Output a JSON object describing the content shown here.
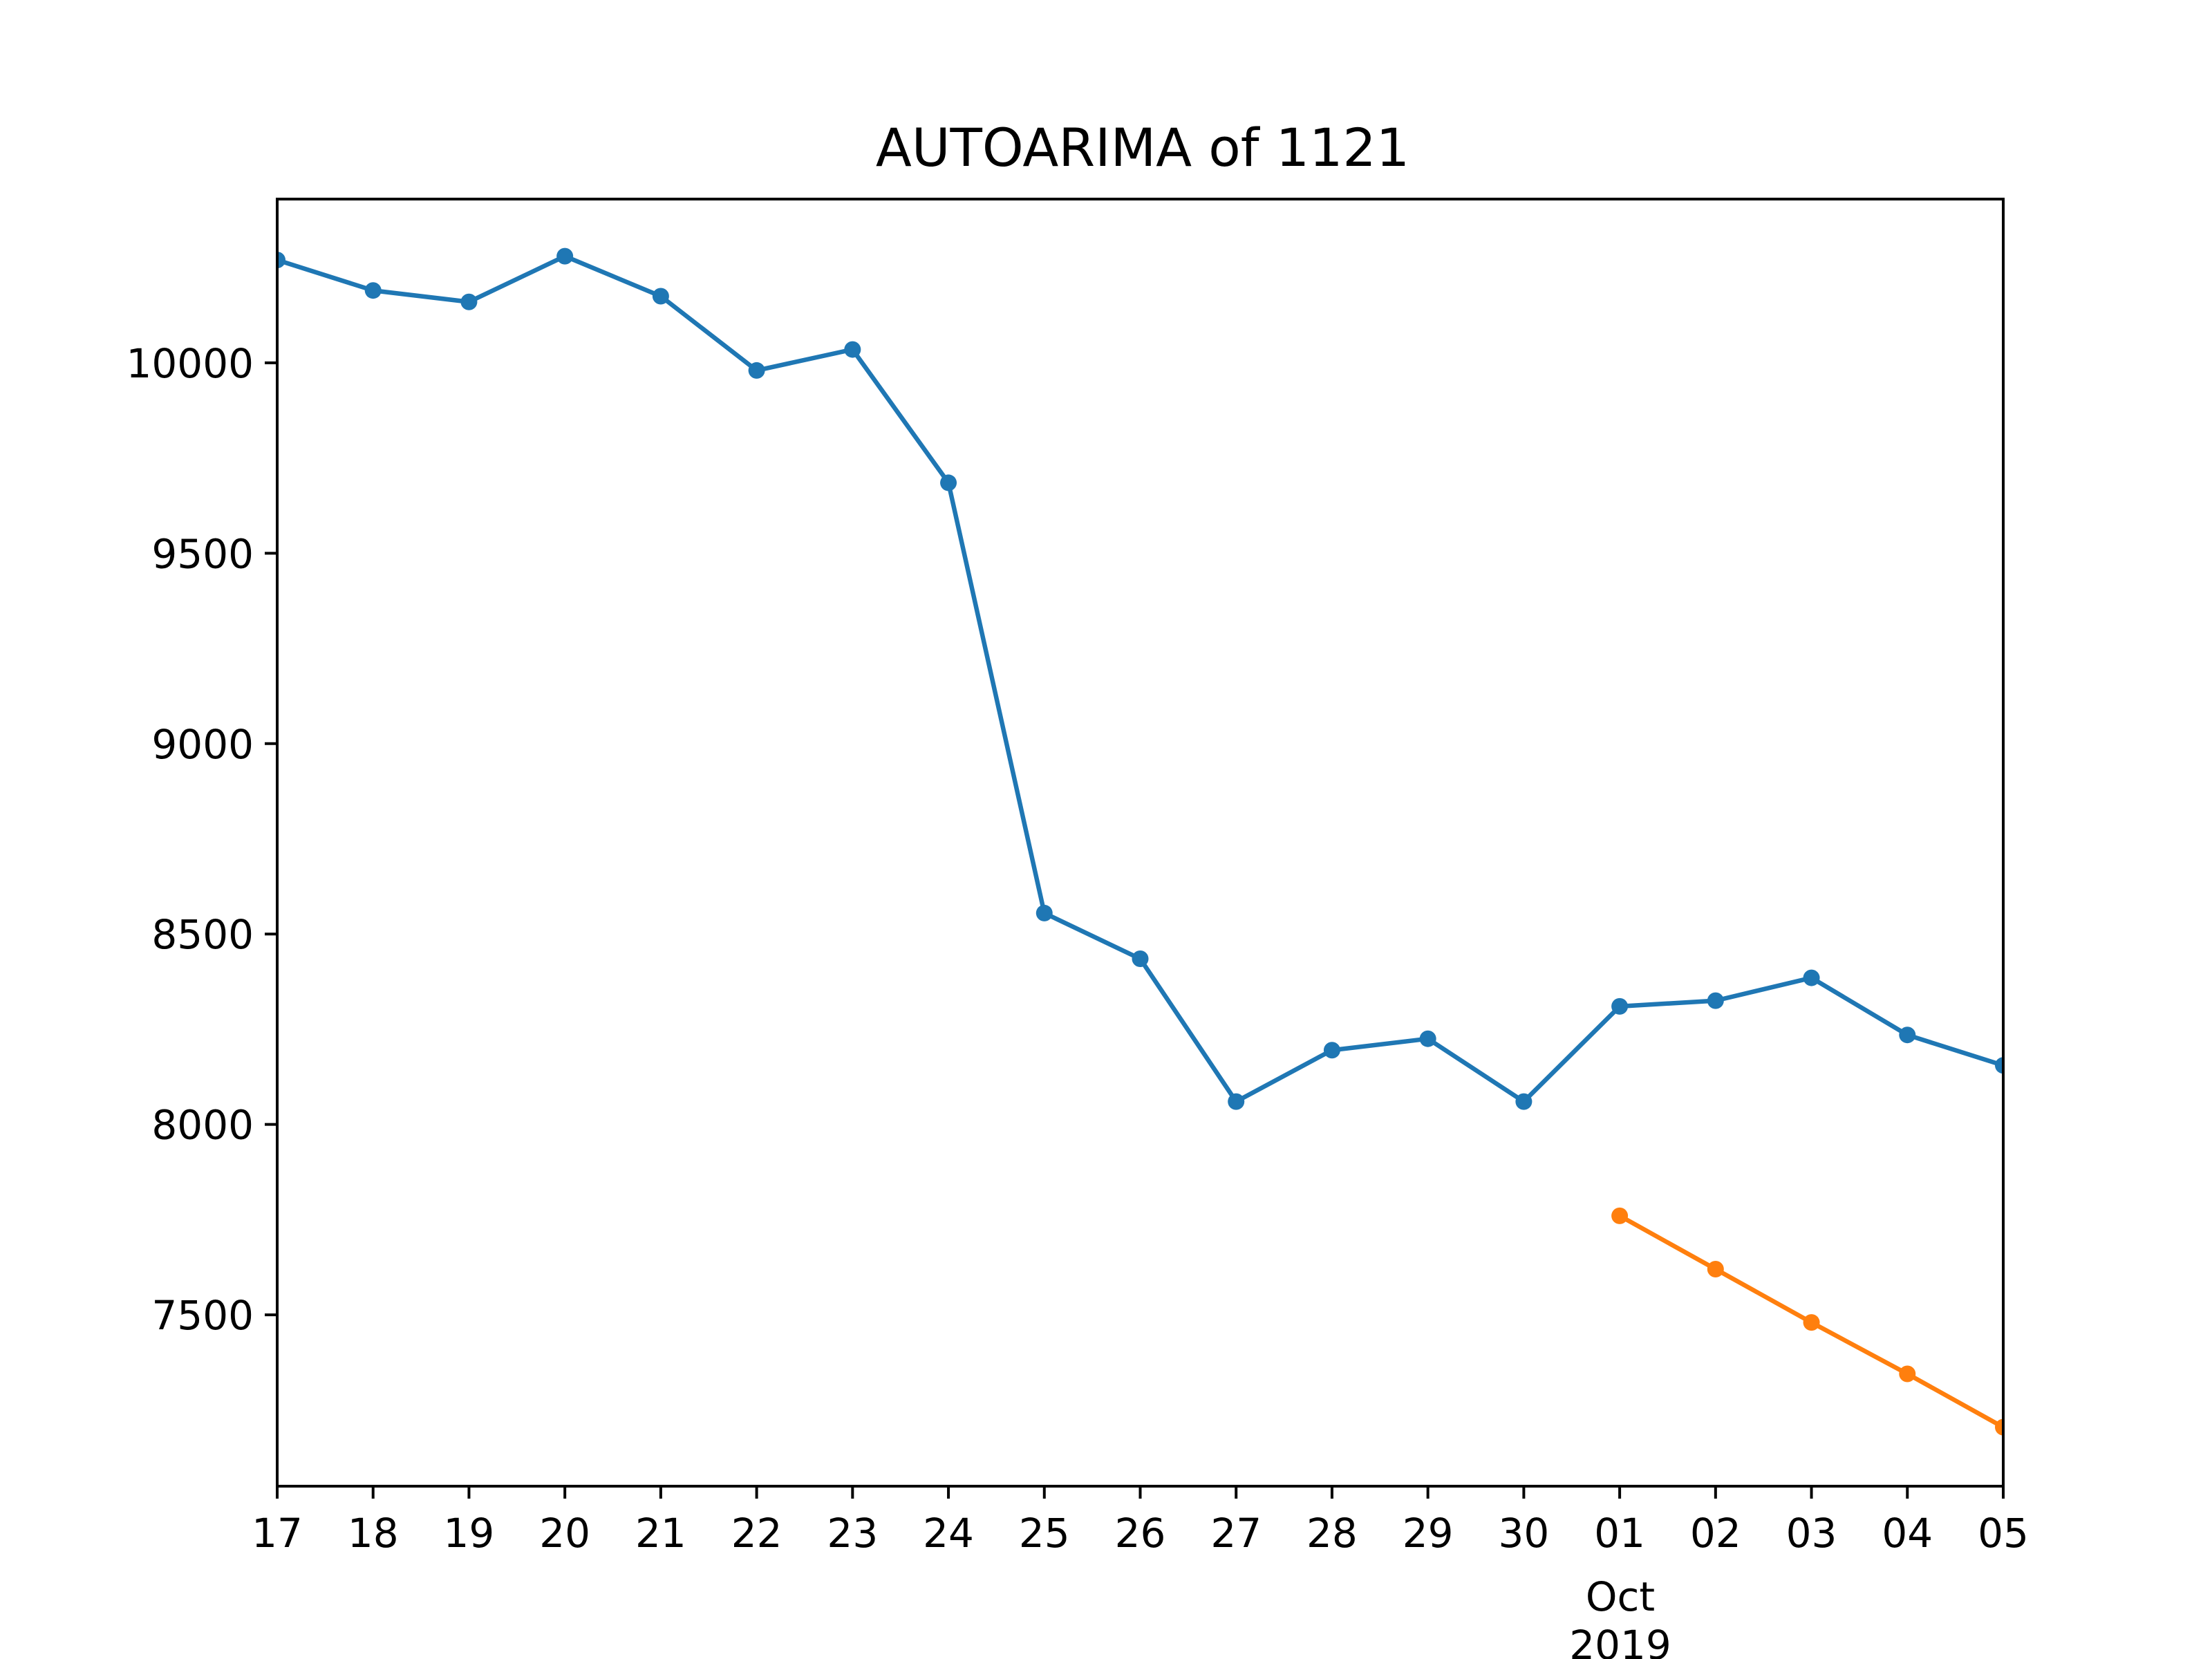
{
  "chart_data": {
    "type": "line",
    "title": "AUTOARIMA of 1121",
    "xlabel": "",
    "ylabel": "",
    "x_ticks": [
      "17",
      "18",
      "19",
      "20",
      "21",
      "22",
      "23",
      "24",
      "25",
      "26",
      "27",
      "28",
      "29",
      "30",
      "01",
      "02",
      "03",
      "04",
      "05"
    ],
    "x_month_label": "Oct",
    "x_year_label": "2019",
    "y_ticks": [
      7500,
      8000,
      8500,
      9000,
      9500,
      10000
    ],
    "ylim": [
      7050,
      10430
    ],
    "grid": false,
    "legend": "none",
    "series": [
      {
        "color": "#1f77b4",
        "x": [
          "2019-09-17",
          "2019-09-18",
          "2019-09-19",
          "2019-09-20",
          "2019-09-21",
          "2019-09-22",
          "2019-09-23",
          "2019-09-24",
          "2019-09-25",
          "2019-09-26",
          "2019-09-27",
          "2019-09-28",
          "2019-09-29",
          "2019-09-30",
          "2019-10-01",
          "2019-10-02",
          "2019-10-03",
          "2019-10-04",
          "2019-10-05"
        ],
        "values": [
          10270,
          10190,
          10160,
          10280,
          10175,
          9980,
          10035,
          9685,
          8555,
          8435,
          8060,
          8195,
          8225,
          8060,
          8310,
          8325,
          8385,
          8235,
          8155
        ]
      },
      {
        "color": "#ff7f0e",
        "x": [
          "2019-10-01",
          "2019-10-02",
          "2019-10-03",
          "2019-10-04",
          "2019-10-05"
        ],
        "values": [
          7760,
          7620,
          7480,
          7345,
          7205
        ]
      }
    ]
  }
}
